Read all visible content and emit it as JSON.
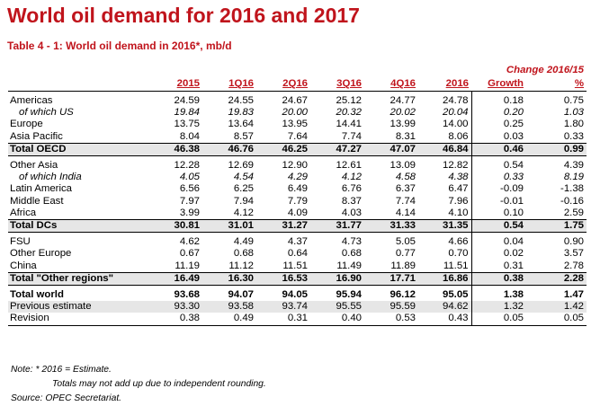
{
  "title": "World oil demand for 2016 and 2017",
  "subtitle": "Table 4 - 1: World oil demand in 2016*, mb/d",
  "table": {
    "change_header": "Change 2016/15",
    "columns": [
      "2015",
      "1Q16",
      "2Q16",
      "3Q16",
      "4Q16",
      "2016",
      "Growth",
      "%"
    ],
    "rows": [
      {
        "label": "Americas",
        "values": [
          "24.59",
          "24.55",
          "24.67",
          "25.12",
          "24.77",
          "24.78",
          "0.18",
          "0.75"
        ]
      },
      {
        "label": "of which US",
        "values": [
          "19.84",
          "19.83",
          "20.00",
          "20.32",
          "20.02",
          "20.04",
          "0.20",
          "1.03"
        ]
      },
      {
        "label": "Europe",
        "values": [
          "13.75",
          "13.64",
          "13.95",
          "14.41",
          "13.99",
          "14.00",
          "0.25",
          "1.80"
        ]
      },
      {
        "label": "Asia Pacific",
        "values": [
          "8.04",
          "8.57",
          "7.64",
          "7.74",
          "8.31",
          "8.06",
          "0.03",
          "0.33"
        ]
      },
      {
        "label": "Total OECD",
        "values": [
          "46.38",
          "46.76",
          "46.25",
          "47.27",
          "47.07",
          "46.84",
          "0.46",
          "0.99"
        ]
      },
      {
        "label": "Other Asia",
        "values": [
          "12.28",
          "12.69",
          "12.90",
          "12.61",
          "13.09",
          "12.82",
          "0.54",
          "4.39"
        ]
      },
      {
        "label": "of which India",
        "values": [
          "4.05",
          "4.54",
          "4.29",
          "4.12",
          "4.58",
          "4.38",
          "0.33",
          "8.19"
        ]
      },
      {
        "label": "Latin America",
        "values": [
          "6.56",
          "6.25",
          "6.49",
          "6.76",
          "6.37",
          "6.47",
          "-0.09",
          "-1.38"
        ]
      },
      {
        "label": "Middle East",
        "values": [
          "7.97",
          "7.94",
          "7.79",
          "8.37",
          "7.74",
          "7.96",
          "-0.01",
          "-0.16"
        ]
      },
      {
        "label": "Africa",
        "values": [
          "3.99",
          "4.12",
          "4.09",
          "4.03",
          "4.14",
          "4.10",
          "0.10",
          "2.59"
        ]
      },
      {
        "label": "Total DCs",
        "values": [
          "30.81",
          "31.01",
          "31.27",
          "31.77",
          "31.33",
          "31.35",
          "0.54",
          "1.75"
        ]
      },
      {
        "label": "FSU",
        "values": [
          "4.62",
          "4.49",
          "4.37",
          "4.73",
          "5.05",
          "4.66",
          "0.04",
          "0.90"
        ]
      },
      {
        "label": "Other Europe",
        "values": [
          "0.67",
          "0.68",
          "0.64",
          "0.68",
          "0.77",
          "0.70",
          "0.02",
          "3.57"
        ]
      },
      {
        "label": "China",
        "values": [
          "11.19",
          "11.12",
          "11.51",
          "11.49",
          "11.89",
          "11.51",
          "0.31",
          "2.78"
        ]
      },
      {
        "label": "Total \"Other regions\"",
        "values": [
          "16.49",
          "16.30",
          "16.53",
          "16.90",
          "17.71",
          "16.86",
          "0.38",
          "2.28"
        ]
      },
      {
        "label": "Total world",
        "values": [
          "93.68",
          "94.07",
          "94.05",
          "95.94",
          "96.12",
          "95.05",
          "1.38",
          "1.47"
        ]
      },
      {
        "label": "Previous estimate",
        "values": [
          "93.30",
          "93.58",
          "93.74",
          "95.55",
          "95.59",
          "94.62",
          "1.32",
          "1.42"
        ]
      },
      {
        "label": "Revision",
        "values": [
          "0.38",
          "0.49",
          "0.31",
          "0.40",
          "0.53",
          "0.43",
          "0.05",
          "0.05"
        ]
      }
    ]
  },
  "notes": {
    "line1": "Note: * 2016 = Estimate.",
    "line2": "Totals may not add up due to independent rounding.",
    "line3": "Source: OPEC Secretariat."
  }
}
